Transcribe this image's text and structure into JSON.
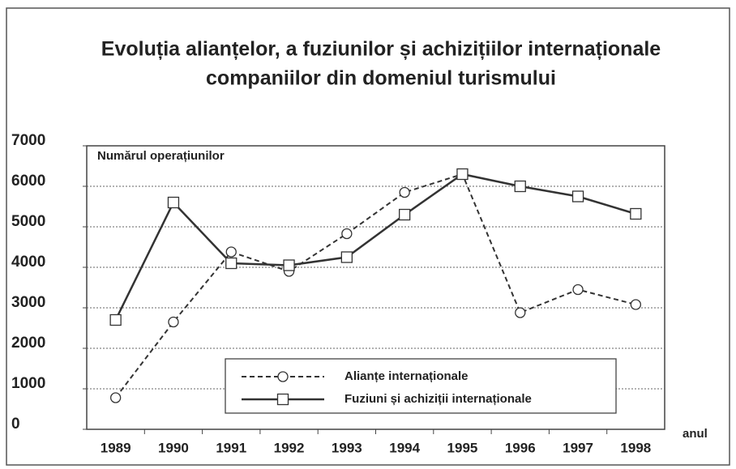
{
  "chart_data": {
    "type": "line",
    "title": [
      "Evoluția alianțelor, a fuziunilor și achizițiilor internaționale",
      "companiilor din domeniul turismului"
    ],
    "y_label": "Numărul operațiunilor",
    "x_label": "anul",
    "categories": [
      "1989",
      "1990",
      "1991",
      "1992",
      "1993",
      "1994",
      "1995",
      "1996",
      "1997",
      "1998"
    ],
    "series": [
      {
        "name": "Alianțe internaționale",
        "color": "#333333",
        "dashed": true,
        "marker": "circle",
        "values": [
          780,
          2650,
          4380,
          3900,
          4830,
          5850,
          6300,
          2880,
          3450,
          3080
        ]
      },
      {
        "name": "Fuziuni și achiziții internaționale",
        "color": "#333333",
        "dashed": false,
        "marker": "square",
        "values": [
          2700,
          5600,
          4100,
          4050,
          4250,
          5300,
          6300,
          6000,
          5750,
          5320
        ]
      }
    ],
    "ylim": [
      0,
      7000
    ],
    "yticks": [
      0,
      1000,
      2000,
      3000,
      4000,
      5000,
      6000,
      7000
    ],
    "grid": true
  }
}
